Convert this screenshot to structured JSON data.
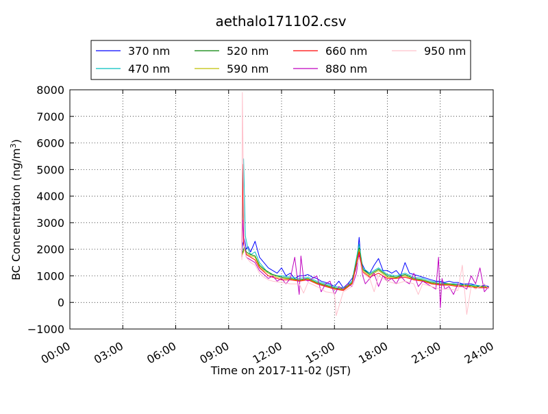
{
  "chart_data": {
    "type": "line",
    "title": "aethalo171102.csv",
    "xlabel": "Time on 2017-11-02 (JST)",
    "ylabel_main": "BC Concentration (ng/m",
    "ylabel_sup": "3",
    "ylabel_end": ")",
    "xlim_hours": [
      0,
      24
    ],
    "ylim": [
      -1000,
      8000
    ],
    "x_ticks": [
      {
        "hour": 0,
        "label": "00:00"
      },
      {
        "hour": 3,
        "label": "03:00"
      },
      {
        "hour": 6,
        "label": "06:00"
      },
      {
        "hour": 9,
        "label": "09:00"
      },
      {
        "hour": 12,
        "label": "12:00"
      },
      {
        "hour": 15,
        "label": "15:00"
      },
      {
        "hour": 18,
        "label": "18:00"
      },
      {
        "hour": 21,
        "label": "21:00"
      },
      {
        "hour": 24,
        "label": "24:00"
      }
    ],
    "y_ticks": [
      {
        "value": 8000,
        "label": "8000"
      },
      {
        "value": 7000,
        "label": "7000"
      },
      {
        "value": 6000,
        "label": "6000"
      },
      {
        "value": 5000,
        "label": "5000"
      },
      {
        "value": 4000,
        "label": "4000"
      },
      {
        "value": 3000,
        "label": "3000"
      },
      {
        "value": 2000,
        "label": "2000"
      },
      {
        "value": 1000,
        "label": "1000"
      },
      {
        "value": 0,
        "label": "0"
      },
      {
        "value": -1000,
        "label": "−1000"
      }
    ],
    "grid": true,
    "legend_position": "top",
    "series": [
      {
        "name": "370 nm",
        "color": "#0000ff",
        "x": [
          9.75,
          9.8,
          9.9,
          10.0,
          10.1,
          10.25,
          10.5,
          10.75,
          11.0,
          11.25,
          11.5,
          11.75,
          12.0,
          12.25,
          12.5,
          12.75,
          13.0,
          13.25,
          13.5,
          13.75,
          14.0,
          14.25,
          14.5,
          14.75,
          15.0,
          15.25,
          15.5,
          15.75,
          16.0,
          16.25,
          16.4,
          16.5,
          16.6,
          16.75,
          17.0,
          17.25,
          17.5,
          17.75,
          18.0,
          18.25,
          18.5,
          18.75,
          19.0,
          19.25,
          19.5,
          19.75,
          20.0,
          20.25,
          20.5,
          20.75,
          21.0,
          21.25,
          21.5,
          21.75,
          22.0,
          22.25,
          22.5,
          22.75,
          23.0,
          23.25,
          23.5,
          23.75
        ],
        "y": [
          1900,
          2200,
          2400,
          2000,
          2100,
          1900,
          2300,
          1700,
          1500,
          1300,
          1200,
          1100,
          1300,
          1000,
          1100,
          900,
          1000,
          1000,
          1050,
          950,
          900,
          800,
          750,
          700,
          600,
          800,
          550,
          700,
          900,
          1300,
          2450,
          1600,
          1400,
          1200,
          1100,
          1400,
          1650,
          1200,
          1200,
          1100,
          1200,
          1000,
          1500,
          1100,
          1050,
          1000,
          950,
          900,
          850,
          800,
          800,
          750,
          800,
          750,
          750,
          700,
          700,
          700,
          650,
          600,
          650,
          600
        ]
      },
      {
        "name": "470 nm",
        "color": "#00bfbf",
        "x": [
          9.75,
          9.85,
          9.95,
          10.1,
          10.25,
          10.5,
          10.75,
          11.0,
          11.25,
          11.5,
          11.75,
          12.0,
          12.5,
          13.0,
          13.5,
          14.0,
          14.5,
          15.0,
          15.5,
          16.0,
          16.4,
          16.6,
          17.0,
          17.5,
          18.0,
          18.5,
          19.0,
          19.5,
          20.0,
          20.5,
          21.0,
          21.5,
          22.0,
          22.5,
          23.0,
          23.5,
          23.75
        ],
        "y": [
          2100,
          5400,
          2500,
          2000,
          1800,
          1900,
          1500,
          1300,
          1100,
          1050,
          1000,
          1000,
          950,
          900,
          950,
          800,
          700,
          600,
          550,
          800,
          2200,
          1300,
          1100,
          1300,
          1050,
          1000,
          1100,
          950,
          900,
          800,
          750,
          700,
          700,
          650,
          650,
          600,
          600
        ]
      },
      {
        "name": "520 nm",
        "color": "#008000",
        "x": [
          9.75,
          9.9,
          10.0,
          10.25,
          10.5,
          10.75,
          11.0,
          11.5,
          12.0,
          12.5,
          13.0,
          13.5,
          14.0,
          14.5,
          15.0,
          15.5,
          16.0,
          16.4,
          16.6,
          17.0,
          17.5,
          18.0,
          18.5,
          19.0,
          19.5,
          20.0,
          20.5,
          21.0,
          21.5,
          22.0,
          22.5,
          23.0,
          23.5,
          23.75
        ],
        "y": [
          1800,
          2100,
          1900,
          1800,
          1750,
          1400,
          1250,
          1050,
          950,
          900,
          850,
          900,
          750,
          650,
          550,
          500,
          750,
          2050,
          1250,
          1050,
          1250,
          1000,
          950,
          1050,
          900,
          850,
          750,
          700,
          700,
          650,
          650,
          600,
          600,
          580
        ]
      },
      {
        "name": "590 nm",
        "color": "#bfbf00",
        "x": [
          9.75,
          9.9,
          10.0,
          10.25,
          10.5,
          10.75,
          11.0,
          11.5,
          12.0,
          12.5,
          13.0,
          13.5,
          14.0,
          14.5,
          15.0,
          15.5,
          16.0,
          16.4,
          16.6,
          17.0,
          17.5,
          18.0,
          18.5,
          19.0,
          19.5,
          20.0,
          20.5,
          21.0,
          21.5,
          22.0,
          22.5,
          23.0,
          23.5,
          23.75
        ],
        "y": [
          1750,
          2000,
          1850,
          1750,
          1700,
          1350,
          1200,
          1000,
          900,
          880,
          820,
          880,
          720,
          620,
          520,
          480,
          720,
          2000,
          1200,
          1000,
          1200,
          950,
          920,
          1000,
          870,
          820,
          720,
          680,
          680,
          630,
          630,
          580,
          580,
          560
        ]
      },
      {
        "name": "660 nm",
        "color": "#ff0000",
        "x": [
          9.75,
          9.78,
          9.85,
          10.0,
          10.25,
          10.5,
          10.75,
          11.0,
          11.25,
          11.5,
          12.0,
          12.5,
          13.0,
          13.5,
          14.0,
          14.5,
          15.0,
          15.5,
          16.0,
          16.4,
          16.6,
          17.0,
          17.5,
          18.0,
          18.5,
          19.0,
          19.5,
          20.0,
          20.5,
          21.0,
          21.5,
          22.0,
          22.5,
          23.0,
          23.5,
          23.75
        ],
        "y": [
          1700,
          5200,
          2200,
          1800,
          1700,
          1600,
          1300,
          1150,
          1000,
          950,
          850,
          850,
          800,
          850,
          700,
          600,
          500,
          450,
          700,
          1900,
          1150,
          950,
          1100,
          900,
          900,
          950,
          850,
          800,
          700,
          650,
          650,
          600,
          600,
          550,
          550,
          550
        ]
      },
      {
        "name": "880 nm",
        "color": "#bf00bf",
        "x": [
          9.75,
          9.8,
          9.9,
          10.0,
          10.25,
          10.5,
          10.75,
          11.0,
          11.25,
          11.5,
          11.75,
          12.0,
          12.25,
          12.5,
          12.75,
          13.0,
          13.1,
          13.25,
          13.5,
          13.75,
          14.0,
          14.25,
          14.5,
          14.75,
          15.0,
          15.25,
          15.5,
          15.75,
          16.0,
          16.25,
          16.4,
          16.6,
          16.75,
          17.0,
          17.25,
          17.5,
          17.75,
          18.0,
          18.25,
          18.5,
          18.75,
          19.0,
          19.25,
          19.5,
          19.75,
          20.0,
          20.25,
          20.5,
          20.75,
          20.9,
          21.0,
          21.1,
          21.25,
          21.5,
          21.75,
          22.0,
          22.25,
          22.5,
          22.75,
          23.0,
          23.25,
          23.5,
          23.75
        ],
        "y": [
          1700,
          3100,
          2100,
          1700,
          1600,
          1500,
          1200,
          1050,
          900,
          1000,
          800,
          900,
          700,
          900,
          1700,
          300,
          1750,
          900,
          800,
          900,
          1000,
          400,
          700,
          800,
          300,
          600,
          500,
          700,
          600,
          1100,
          1800,
          1000,
          700,
          900,
          1100,
          600,
          1000,
          800,
          900,
          700,
          1000,
          800,
          700,
          1100,
          600,
          800,
          700,
          600,
          500,
          1700,
          -200,
          900,
          500,
          600,
          300,
          700,
          600,
          500,
          1000,
          700,
          1300,
          400,
          600
        ]
      },
      {
        "name": "950 nm",
        "color": "#ffc0cb",
        "x": [
          9.75,
          9.78,
          9.82,
          9.9,
          10.0,
          10.25,
          10.5,
          10.75,
          11.0,
          11.25,
          11.5,
          12.0,
          12.5,
          13.0,
          13.25,
          13.5,
          14.0,
          14.5,
          15.0,
          15.1,
          15.5,
          16.0,
          16.4,
          16.6,
          17.0,
          17.25,
          17.5,
          18.0,
          18.5,
          19.0,
          19.5,
          19.75,
          20.0,
          20.5,
          21.0,
          21.5,
          22.0,
          22.25,
          22.5,
          22.75,
          23.0,
          23.5,
          23.75
        ],
        "y": [
          1600,
          7900,
          5600,
          2000,
          1700,
          1500,
          1400,
          1100,
          950,
          850,
          800,
          750,
          700,
          700,
          350,
          750,
          600,
          400,
          350,
          -500,
          400,
          600,
          1700,
          1100,
          900,
          400,
          1000,
          800,
          700,
          800,
          700,
          300,
          700,
          600,
          500,
          500,
          450,
          1400,
          -450,
          600,
          500,
          700,
          500
        ]
      }
    ]
  }
}
